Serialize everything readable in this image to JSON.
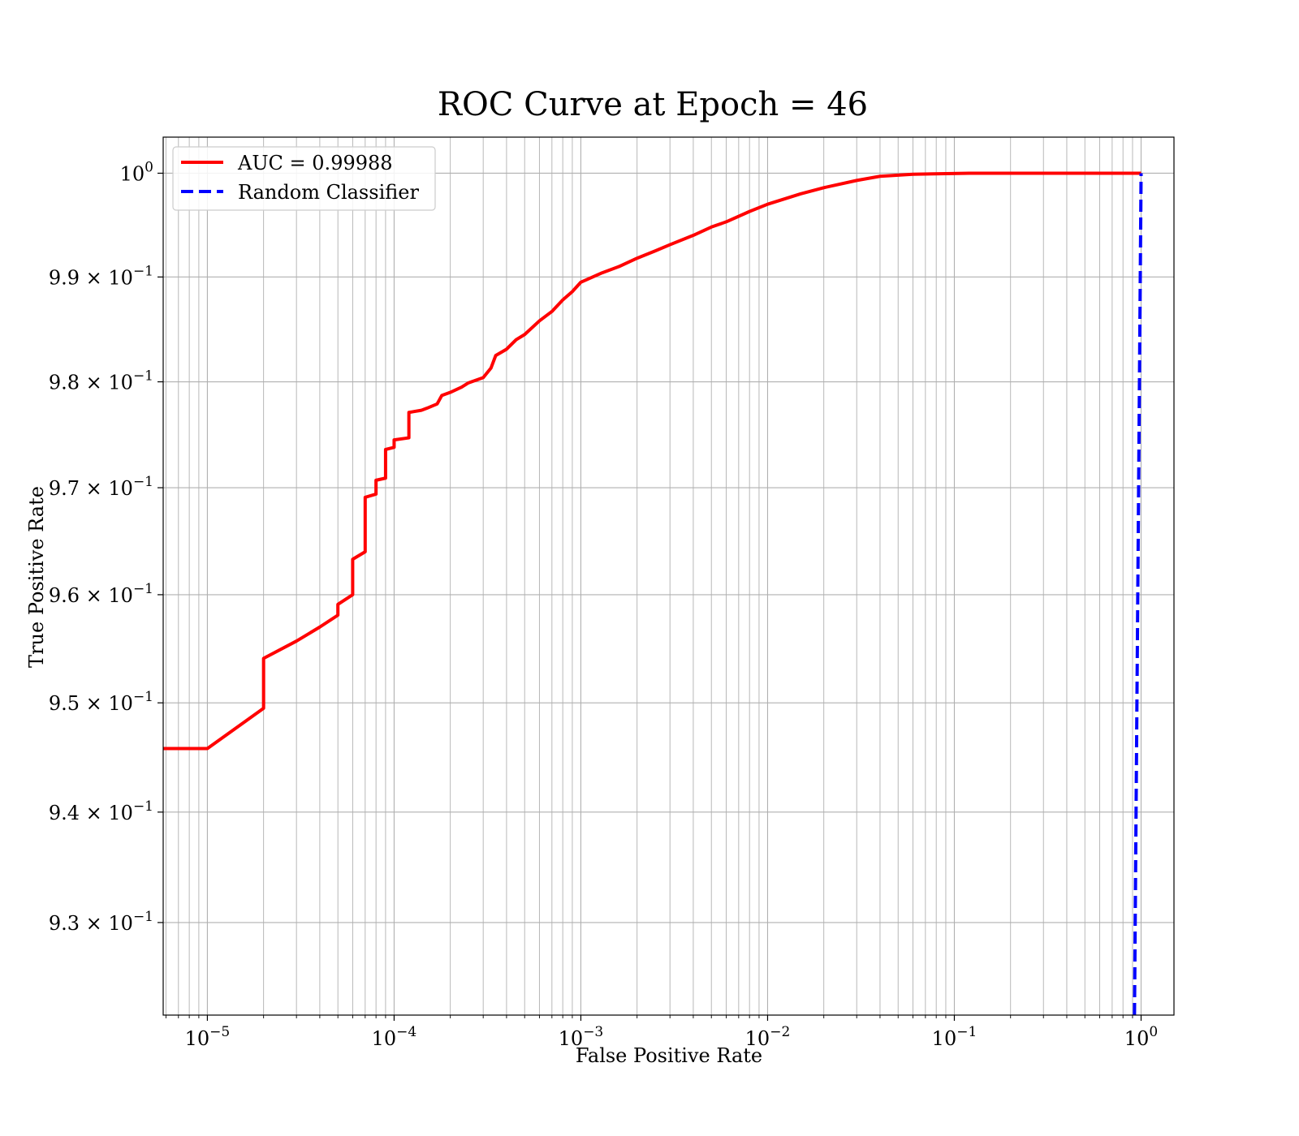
{
  "chart_data": {
    "type": "line",
    "title": "ROC Curve at Epoch = 46",
    "xlabel": "False Positive Rate",
    "ylabel": "True Positive Rate",
    "xscale": "log",
    "yscale": "log",
    "xlim": [
      5.8e-06,
      1.5
    ],
    "ylim": [
      0.9217,
      1.0035
    ],
    "grid": "major and minor",
    "legend_placement": "top-left",
    "x_ticks": [
      {
        "value": 1e-05,
        "base": "10",
        "exp": "−5"
      },
      {
        "value": 0.0001,
        "base": "10",
        "exp": "−4"
      },
      {
        "value": 0.001,
        "base": "10",
        "exp": "−3"
      },
      {
        "value": 0.01,
        "base": "10",
        "exp": "−2"
      },
      {
        "value": 0.1,
        "base": "10",
        "exp": "−1"
      },
      {
        "value": 1,
        "base": "10",
        "exp": "0"
      }
    ],
    "y_ticks": [
      {
        "value": 0.93,
        "base": "9.3 × 10",
        "exp": "−1"
      },
      {
        "value": 0.94,
        "base": "9.4 × 10",
        "exp": "−1"
      },
      {
        "value": 0.95,
        "base": "9.5 × 10",
        "exp": "−1"
      },
      {
        "value": 0.96,
        "base": "9.6 × 10",
        "exp": "−1"
      },
      {
        "value": 0.97,
        "base": "9.7 × 10",
        "exp": "−1"
      },
      {
        "value": 0.98,
        "base": "9.8 × 10",
        "exp": "−1"
      },
      {
        "value": 0.99,
        "base": "9.9 × 10",
        "exp": "−1"
      },
      {
        "value": 1.0,
        "base": "10",
        "exp": "0"
      }
    ],
    "series": [
      {
        "name": "AUC = 0.99988",
        "color": "#ff0000",
        "style": "solid",
        "points": [
          [
            5.8e-06,
            0.9458
          ],
          [
            1e-05,
            0.9458
          ],
          [
            2e-05,
            0.9495
          ],
          [
            2e-05,
            0.9541
          ],
          [
            3e-05,
            0.9557
          ],
          [
            4e-05,
            0.957
          ],
          [
            5e-05,
            0.9581
          ],
          [
            5e-05,
            0.9591
          ],
          [
            6e-05,
            0.96
          ],
          [
            6e-05,
            0.9633
          ],
          [
            7e-05,
            0.964
          ],
          [
            7e-05,
            0.9691
          ],
          [
            8e-05,
            0.9694
          ],
          [
            8e-05,
            0.9707
          ],
          [
            9e-05,
            0.9709
          ],
          [
            9e-05,
            0.9736
          ],
          [
            0.0001,
            0.9738
          ],
          [
            0.0001,
            0.9745
          ],
          [
            0.00012,
            0.9747
          ],
          [
            0.00012,
            0.9771
          ],
          [
            0.00014,
            0.9773
          ],
          [
            0.00015,
            0.9775
          ],
          [
            0.00017,
            0.9779
          ],
          [
            0.00018,
            0.9787
          ],
          [
            0.0002,
            0.979
          ],
          [
            0.00023,
            0.9795
          ],
          [
            0.00025,
            0.9799
          ],
          [
            0.0003,
            0.9804
          ],
          [
            0.00033,
            0.9813
          ],
          [
            0.00035,
            0.9825
          ],
          [
            0.0004,
            0.9831
          ],
          [
            0.00045,
            0.984
          ],
          [
            0.0005,
            0.9845
          ],
          [
            0.0006,
            0.9858
          ],
          [
            0.0007,
            0.9867
          ],
          [
            0.0008,
            0.9878
          ],
          [
            0.0009,
            0.9886
          ],
          [
            0.001,
            0.9895
          ],
          [
            0.0013,
            0.9904
          ],
          [
            0.0016,
            0.991
          ],
          [
            0.002,
            0.9918
          ],
          [
            0.0025,
            0.9925
          ],
          [
            0.003,
            0.9931
          ],
          [
            0.004,
            0.994
          ],
          [
            0.005,
            0.9948
          ],
          [
            0.006,
            0.9953
          ],
          [
            0.008,
            0.9963
          ],
          [
            0.01,
            0.997
          ],
          [
            0.015,
            0.998
          ],
          [
            0.02,
            0.9986
          ],
          [
            0.03,
            0.9993
          ],
          [
            0.04,
            0.9997
          ],
          [
            0.06,
            0.9999
          ],
          [
            0.12,
            1.0
          ],
          [
            1.0,
            1.0
          ]
        ]
      },
      {
        "name": "Random Classifier",
        "color": "#0000ff",
        "style": "dashed",
        "points": [
          [
            0.9217,
            0.9217
          ],
          [
            1.0,
            1.0
          ]
        ]
      }
    ]
  }
}
